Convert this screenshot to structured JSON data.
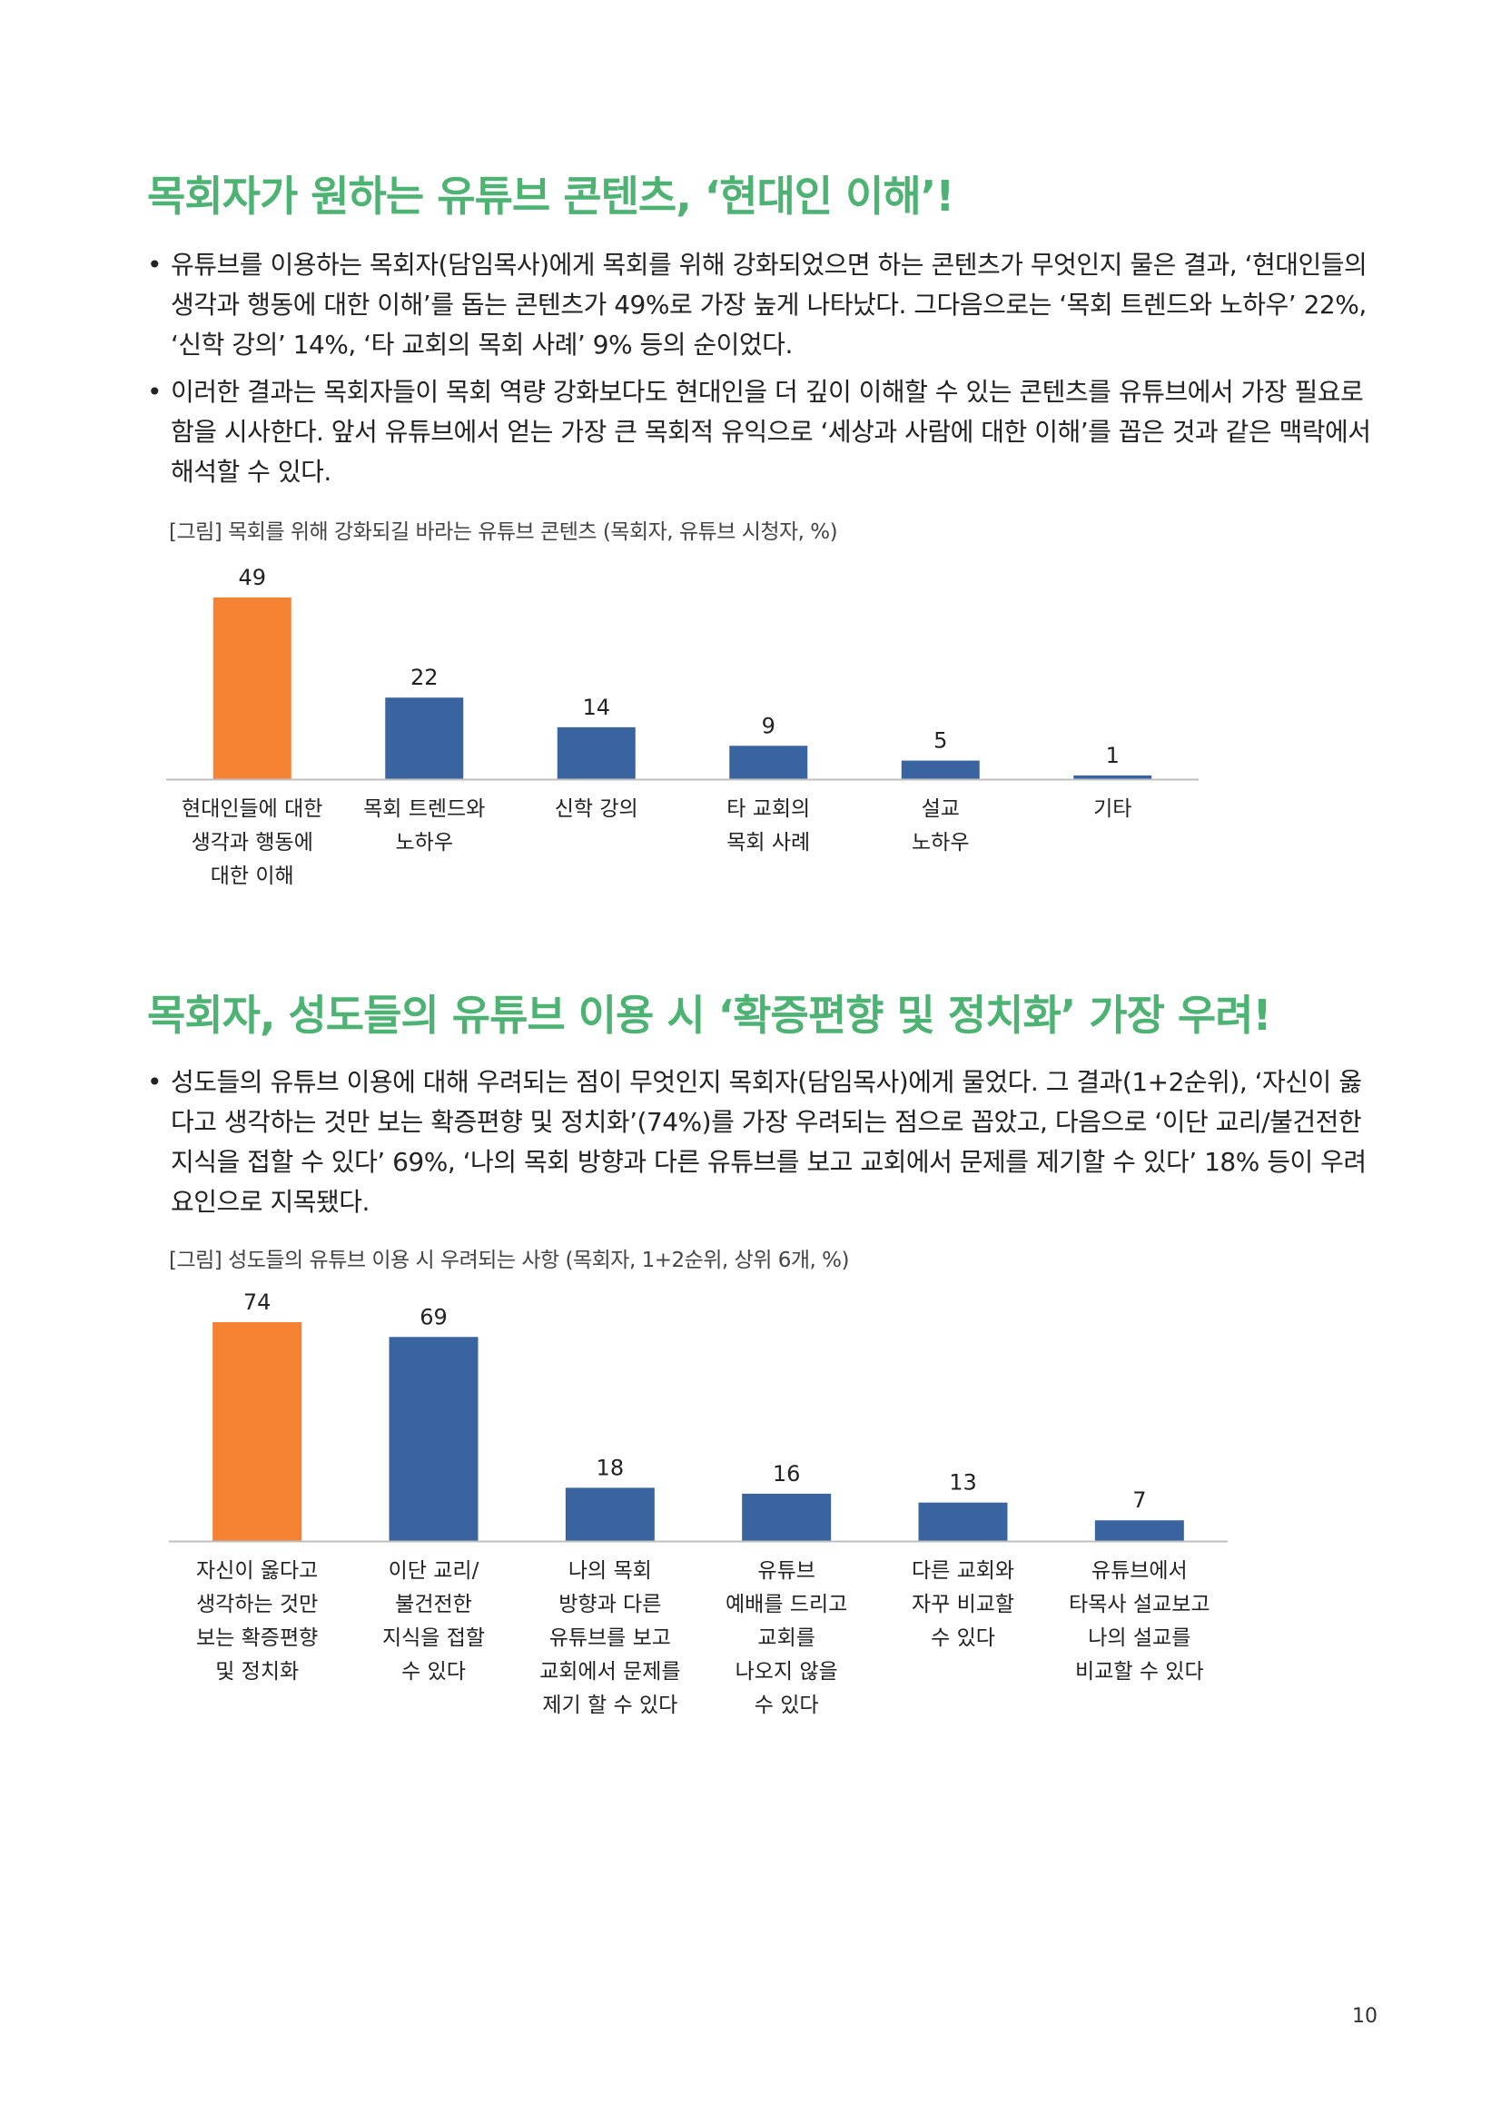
{
  "section1": {
    "heading": "목회자가 원하는 유튜브 콘텐츠, ‘현대인 이해’!",
    "bullets": [
      "유튜브를 이용하는 목회자(담임목사)에게 목회를 위해 강화되었으면 하는 콘텐츠가 무엇인지 물은 결과, ‘현대인들의 생각과 행동에 대한 이해’를 돕는 콘텐츠가 49%로 가장 높게 나타났다. 그다음으로는 ‘목회 트렌드와 노하우’ 22%, ‘신학 강의’ 14%, ‘타 교회의 목회 사례’ 9% 등의 순이었다.",
      "이러한 결과는 목회자들이 목회 역량 강화보다도 현대인을 더 깊이 이해할 수 있는 콘텐츠를 유튜브에서 가장 필요로 함을 시사한다. 앞서 유튜브에서 얻는 가장 큰 목회적 유익으로 ‘세상과 사람에 대한 이해’를 꼽은 것과 같은 맥락에서 해석할 수 있다."
    ],
    "caption": "[그림] 목회를 위해 강화되길 바라는 유튜브 콘텐츠 (목회자, 유튜브 시청자, %)"
  },
  "section2": {
    "heading": "목회자, 성도들의 유튜브 이용 시 ‘확증편향 및 정치화’ 가장 우려!",
    "bullets": [
      "성도들의 유튜브 이용에 대해 우려되는 점이 무엇인지 목회자(담임목사)에게 물었다. 그 결과(1+2순위), ‘자신이 옳다고 생각하는 것만 보는 확증편향 및 정치화’(74%)를 가장 우려되는 점으로 꼽았고, 다음으로 ‘이단 교리/불건전한 지식을 접할 수 있다’ 69%, ‘나의 목회 방향과 다른 유튜브를 보고 교회에서 문제를 제기할 수 있다’ 18% 등이 우려 요인으로 지목됐다."
    ],
    "caption": "[그림] 성도들의 유튜브 이용 시 우려되는 사항 (목회자, 1+2순위, 상위 6개, %)"
  },
  "bullet_symbol": "•",
  "page_number": "10",
  "colors": {
    "heading": "#4cb373",
    "highlight_bar": "#f58233",
    "bar": "#3a64a0",
    "axis": "#bfbfbf"
  },
  "chart_data": [
    {
      "type": "bar",
      "categories": [
        [
          "현대인들에 대한",
          "생각과 행동에",
          "대한 이해"
        ],
        [
          "목회 트렌드와",
          "노하우"
        ],
        [
          "신학 강의"
        ],
        [
          "타 교회의",
          "목회 사례"
        ],
        [
          "설교",
          "노하우"
        ],
        [
          "기타"
        ]
      ],
      "values": [
        49,
        22,
        14,
        9,
        5,
        1
      ],
      "highlight_index": 0,
      "title": "",
      "xlabel": "",
      "ylabel": "",
      "ylim": [
        0,
        49
      ],
      "grid": false
    },
    {
      "type": "bar",
      "categories": [
        [
          "자신이 옳다고",
          "생각하는 것만",
          "보는 확증편향",
          "및 정치화"
        ],
        [
          "이단 교리/",
          "불건전한",
          "지식을 접할",
          "수 있다"
        ],
        [
          "나의 목회",
          "방향과 다른",
          "유튜브를 보고",
          "교회에서 문제를",
          "제기 할 수 있다"
        ],
        [
          "유튜브",
          "예배를 드리고",
          "교회를",
          "나오지 않을",
          "수 있다"
        ],
        [
          "다른 교회와",
          "자꾸 비교할",
          "수 있다"
        ],
        [
          "유튜브에서",
          "타목사 설교보고",
          "나의 설교를",
          "비교할 수 있다"
        ]
      ],
      "values": [
        74,
        69,
        18,
        16,
        13,
        7
      ],
      "highlight_index": 0,
      "title": "",
      "xlabel": "",
      "ylabel": "",
      "ylim": [
        0,
        74
      ],
      "grid": false
    }
  ]
}
